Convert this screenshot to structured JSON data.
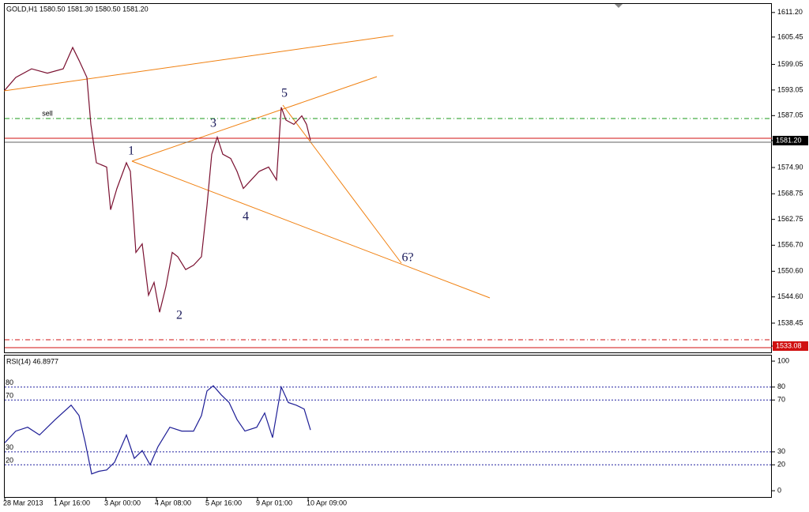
{
  "chart_data": [
    {
      "type": "line",
      "title": "GOLD,H1  1580.50 1581.30 1580.50 1581.20",
      "xlim": [
        0,
        485.5
      ],
      "ylim": [
        1531.6,
        1613.2
      ],
      "yticks": [
        {
          "value": 1611.2,
          "label": "1611.20"
        },
        {
          "value": 1605.45,
          "label": "1605.45"
        },
        {
          "value": 1599.05,
          "label": "1599.05"
        },
        {
          "value": 1593.05,
          "label": "1593.05"
        },
        {
          "value": 1587.05,
          "label": "1587.05"
        },
        {
          "value": 1581.2,
          "label": "1581.20"
        },
        {
          "value": 1574.9,
          "label": "1574.90"
        },
        {
          "value": 1568.75,
          "label": "1568.75"
        },
        {
          "value": 1562.75,
          "label": "1562.75"
        },
        {
          "value": 1556.7,
          "label": "1556.70"
        },
        {
          "value": 1550.6,
          "label": "1550.60"
        },
        {
          "value": 1544.6,
          "label": "1544.60"
        },
        {
          "value": 1538.45,
          "label": "1538.45"
        },
        {
          "value": 1533.08,
          "label": "1533.08"
        }
      ],
      "series": [
        {
          "color": "#7a1030",
          "x": [
            0,
            7,
            17,
            27,
            37,
            43,
            47,
            52,
            54.5,
            58,
            64.5,
            67,
            71,
            77,
            79.5,
            83,
            87,
            91,
            94.5,
            98,
            102,
            106,
            109.5,
            114.5,
            119.5,
            124.5,
            128,
            131,
            134.5,
            138,
            143,
            147,
            151,
            156,
            161,
            167,
            172,
            175,
            178,
            183,
            188,
            191,
            193.5
          ],
          "values": [
            1593,
            1596,
            1598,
            1597,
            1598,
            1603,
            1600,
            1596,
            1585,
            1576,
            1575,
            1565,
            1570,
            1576,
            1574,
            1555,
            1557,
            1545,
            1548,
            1541,
            1547,
            1555,
            1554,
            1551,
            1552,
            1554,
            1566,
            1578,
            1582,
            1578,
            1577,
            1574,
            1570,
            1572,
            1574,
            1575,
            1572,
            1589,
            1586,
            1585,
            1587,
            1585,
            1581.2
          ]
        }
      ],
      "annotations": [
        "1",
        "2",
        "3",
        "4",
        "5",
        "6?",
        "sell"
      ]
    },
    {
      "type": "line",
      "title": "RSI(14) 46.8977",
      "xlim": [
        0,
        485.5
      ],
      "ylim": [
        -3,
        104.3
      ],
      "yticks": [
        0,
        20,
        30,
        70,
        80,
        100
      ],
      "xticks": [
        {
          "value": 0,
          "label": "28 Mar 2013"
        },
        {
          "value": 32,
          "label": "1 Apr 16:00"
        },
        {
          "value": 64,
          "label": "3 Apr 00:00"
        },
        {
          "value": 96,
          "label": "4 Apr 08:00"
        },
        {
          "value": 128,
          "label": "5 Apr 16:00"
        },
        {
          "value": 160,
          "label": "9 Apr 01:00"
        },
        {
          "value": 192,
          "label": "10 Apr 09:00"
        }
      ],
      "series": [
        {
          "color": "#1e1e96",
          "x": [
            0,
            7,
            14.5,
            22,
            32,
            42,
            47,
            51,
            55,
            59.5,
            64.5,
            69.5,
            77,
            82,
            87,
            92,
            97,
            104.5,
            112,
            119.5,
            124.5,
            128,
            132,
            137,
            142,
            147,
            152,
            159.5,
            164.5,
            169.5,
            175,
            179.5,
            184.5,
            189.5,
            193.5
          ],
          "values": [
            37,
            46,
            49,
            43,
            55,
            66,
            58,
            37,
            13,
            15,
            16,
            22,
            43,
            25,
            31,
            20,
            34,
            49,
            46,
            46,
            58,
            77,
            81,
            74,
            68,
            55,
            46,
            49,
            60,
            41,
            80,
            68,
            66,
            63,
            46.9
          ]
        }
      ]
    }
  ]
}
